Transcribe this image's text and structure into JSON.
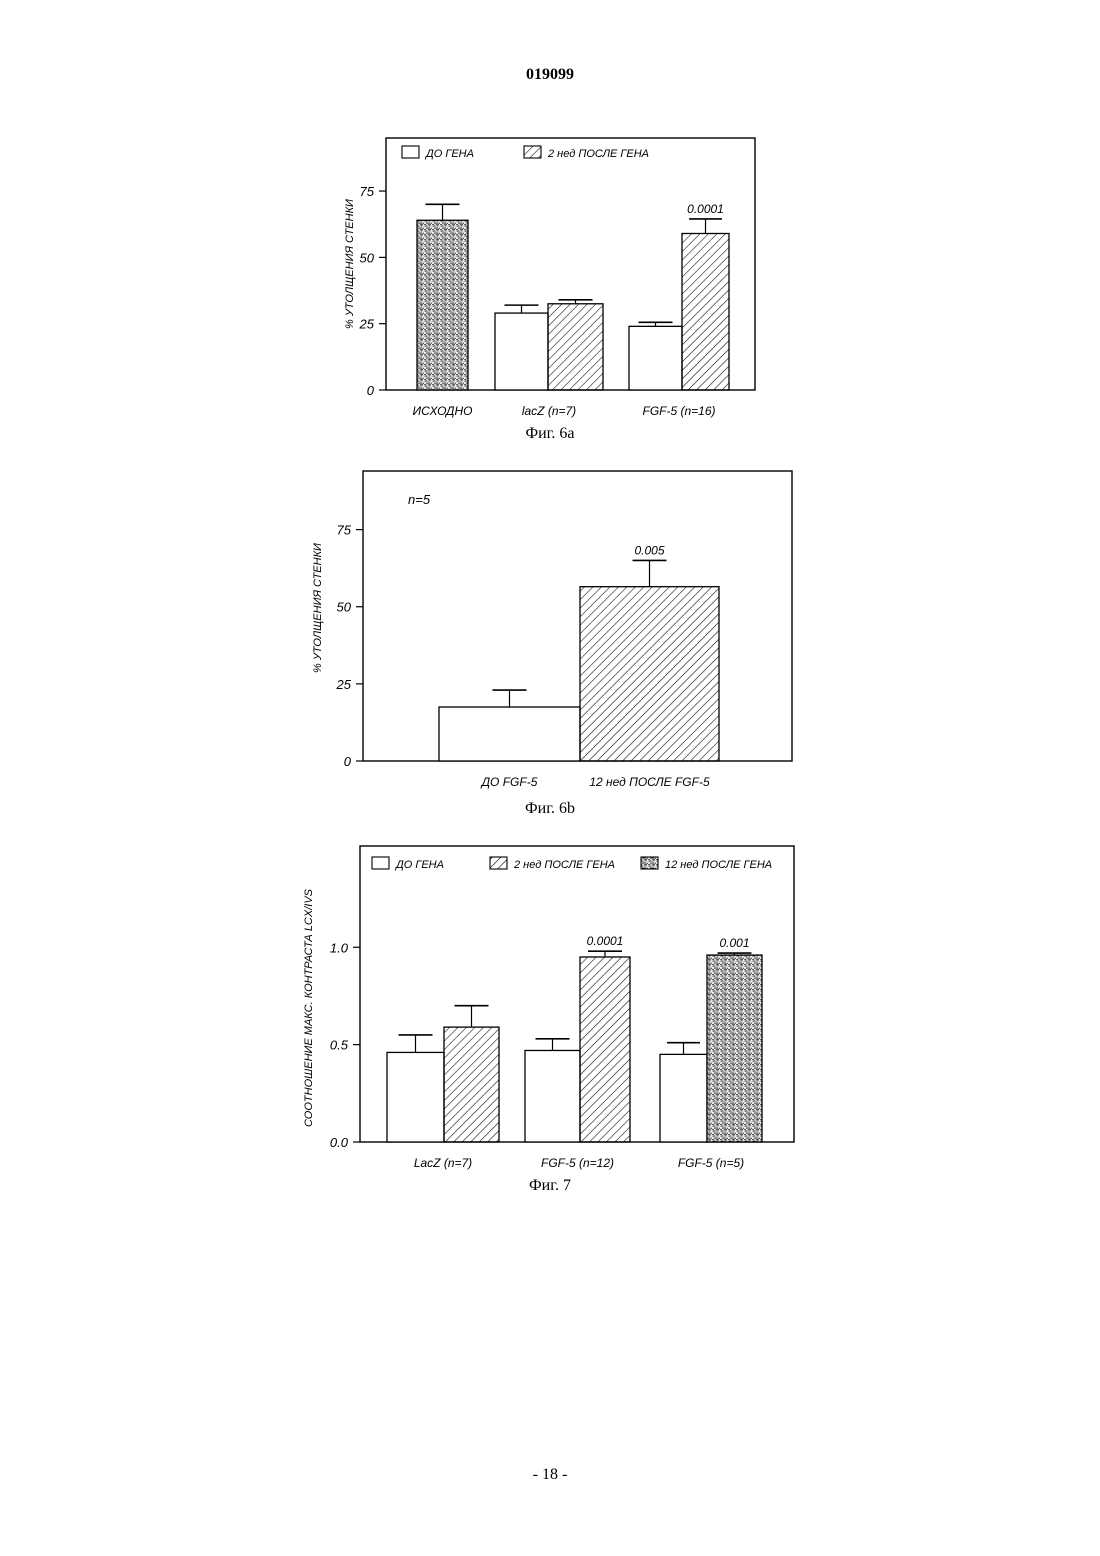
{
  "page": {
    "doc_number": "019099",
    "page_number": "- 18 -"
  },
  "chart_data": [
    {
      "type": "bar",
      "caption": "Фиг. 6а",
      "ylabel": "% УТОЛЩЕНИЯ СТЕНКИ",
      "xlabel": "",
      "ylim": [
        0,
        95
      ],
      "yticks": [
        0,
        25,
        50,
        75
      ],
      "legend_position": "top",
      "categories": [
        "ИСХОДНО",
        "lacZ (n=7)",
        "FGF-5 (n=16)"
      ],
      "series": [
        {
          "name": "",
          "pattern": "stipple",
          "values": [
            64,
            null,
            null
          ],
          "errors": [
            6,
            null,
            null
          ]
        },
        {
          "name": "ДО ГЕНА",
          "pattern": "none",
          "values": [
            null,
            29,
            24
          ],
          "errors": [
            null,
            3,
            1.5
          ]
        },
        {
          "name": "2 нед ПОСЛЕ ГЕНА",
          "pattern": "hatch",
          "values": [
            null,
            32.5,
            59
          ],
          "errors": [
            null,
            1.5,
            5.5
          ]
        }
      ],
      "annotations": [
        {
          "category": 2,
          "series": 2,
          "text": "0.0001"
        }
      ]
    },
    {
      "type": "bar",
      "caption": "Фиг. 6b",
      "ylabel": "% УТОЛЩЕНИЯ СТЕНКИ",
      "xlabel": "",
      "ylim": [
        0,
        94
      ],
      "yticks": [
        0,
        25,
        50,
        75
      ],
      "inset_text": "n=5",
      "categories": [
        "ДО FGF-5",
        "12 нед ПОСЛЕ FGF-5"
      ],
      "series": [
        {
          "name": "",
          "pattern": "none",
          "values": [
            17.5,
            null
          ],
          "errors": [
            5.5,
            null
          ]
        },
        {
          "name": "",
          "pattern": "hatch",
          "values": [
            null,
            56.5
          ],
          "errors": [
            null,
            8.5
          ]
        }
      ],
      "annotations": [
        {
          "category": 1,
          "series": 1,
          "text": "0.005"
        }
      ]
    },
    {
      "type": "bar",
      "caption": "Фиг. 7",
      "ylabel": "СООТНОШЕНИЕ МАКС. КОНТРАСТА LCX/IVS",
      "xlabel": "",
      "ylim": [
        0,
        1.52
      ],
      "yticks": [
        0.0,
        0.5,
        1.0
      ],
      "ytick_labels": [
        "0.0",
        "0.5",
        "1.0"
      ],
      "legend_position": "top",
      "categories": [
        "LacZ (n=7)",
        "FGF-5 (n=12)",
        "FGF-5 (n=5)"
      ],
      "series": [
        {
          "name": "ДО ГЕНА",
          "pattern": "none",
          "values": [
            0.46,
            0.47,
            0.45
          ],
          "errors": [
            0.09,
            0.06,
            0.06
          ]
        },
        {
          "name": "2 нед ПОСЛЕ ГЕНА",
          "pattern": "hatch",
          "values": [
            0.59,
            0.95,
            null
          ],
          "errors": [
            0.11,
            0.03,
            null
          ]
        },
        {
          "name": "12 нед ПОСЛЕ ГЕНА",
          "pattern": "stipple",
          "values": [
            null,
            null,
            0.96
          ],
          "errors": [
            null,
            null,
            0.01
          ]
        }
      ],
      "annotations": [
        {
          "category": 1,
          "series": 1,
          "text": "0.0001"
        },
        {
          "category": 2,
          "series": 2,
          "text": "0.001"
        }
      ]
    }
  ]
}
